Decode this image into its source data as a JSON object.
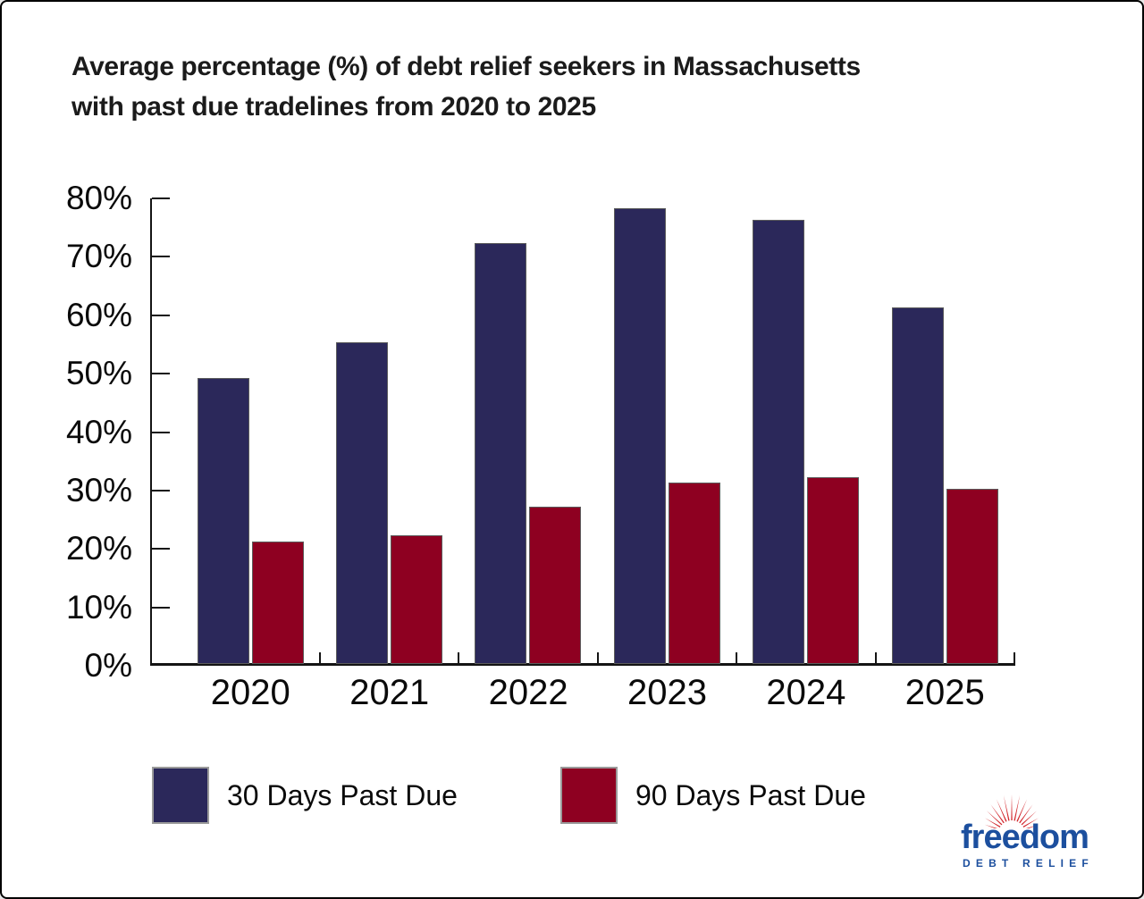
{
  "title": {
    "line1": "Average percentage (%) of debt relief seekers in Massachusetts",
    "line2": "with past due tradelines from 2020 to 2025"
  },
  "chart_data": {
    "type": "bar",
    "title": "Average percentage (%) of debt relief seekers in Massachusetts with past due tradelines from 2020 to 2025",
    "categories": [
      "2020",
      "2021",
      "2022",
      "2023",
      "2024",
      "2025"
    ],
    "series": [
      {
        "name": "30 Days Past Due",
        "color": "#2b285a",
        "values": [
          49,
          55,
          72,
          78,
          76,
          61
        ]
      },
      {
        "name": "90 Days Past Due",
        "color": "#8e0021",
        "values": [
          21,
          22,
          27,
          31,
          32,
          30
        ]
      }
    ],
    "xlabel": "",
    "ylabel": "",
    "ylim": [
      0,
      80
    ],
    "ytick_step": 10,
    "ytick_labels": [
      "0%",
      "10%",
      "20%",
      "30%",
      "40%",
      "50%",
      "60%",
      "70%",
      "80%"
    ],
    "grid": false,
    "legend_position": "bottom",
    "axis_color": "#141414"
  },
  "logo": {
    "brand": "freedom",
    "sub": "DEBT RELIEF",
    "blue": "#1c4f9e",
    "ray_red": "#d2282e"
  }
}
